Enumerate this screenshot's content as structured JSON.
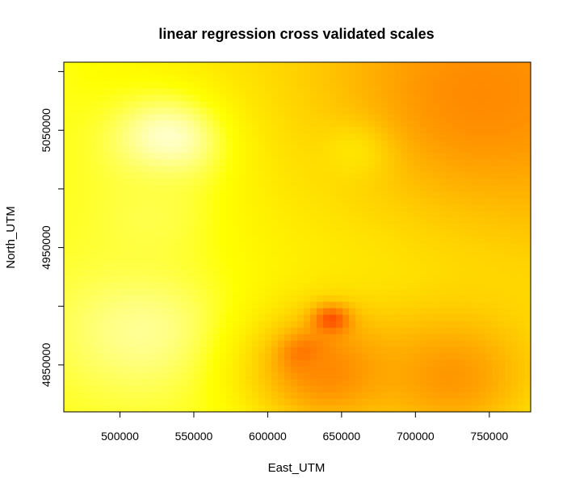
{
  "chart_data": {
    "type": "heatmap",
    "title": "linear regression cross validated scales",
    "xlabel": "East_UTM",
    "ylabel": "North_UTM",
    "xlim": [
      462000,
      778000
    ],
    "ylim": [
      4810000,
      5108000
    ],
    "x_ticks": [
      500000,
      550000,
      600000,
      650000,
      700000,
      750000
    ],
    "x_tick_labels": [
      "500000",
      "550000",
      "600000",
      "650000",
      "700000",
      "750000"
    ],
    "y_ticks": [
      4850000,
      4900000,
      4950000,
      5000000,
      5050000,
      5100000
    ],
    "y_tick_labels": [
      "4850000",
      "",
      "4950000",
      "",
      "5050000",
      ""
    ],
    "grid": false,
    "legend": "none",
    "colormap": "heat (red-orange-yellow-white)",
    "colors": {
      "low": "#ff0000",
      "mid_low": "#ff8a00",
      "mid": "#ffd200",
      "high": "#ffff00",
      "highest": "#ffffe0"
    },
    "features": [
      {
        "kind": "min",
        "x": 627000,
        "y": 4858000,
        "value": 0.02,
        "spread": 11000
      },
      {
        "kind": "min",
        "x": 643000,
        "y": 4887000,
        "value": 0.05,
        "spread": 9000
      },
      {
        "kind": "max",
        "x": 532000,
        "y": 5040000,
        "value": 1.0,
        "spread": 30000
      },
      {
        "kind": "max",
        "x": 515000,
        "y": 4880000,
        "value": 0.95,
        "spread": 45000
      },
      {
        "kind": "max",
        "x": 520000,
        "y": 4975000,
        "value": 0.9,
        "spread": 35000
      },
      {
        "kind": "max",
        "x": 665000,
        "y": 5035000,
        "value": 0.88,
        "spread": 18000
      },
      {
        "kind": "min",
        "x": 745000,
        "y": 5080000,
        "value": 0.45,
        "spread": 60000
      },
      {
        "kind": "min",
        "x": 725000,
        "y": 4840000,
        "value": 0.5,
        "spread": 40000
      },
      {
        "kind": "min",
        "x": 640000,
        "y": 4845000,
        "value": 0.45,
        "spread": 35000
      }
    ]
  }
}
